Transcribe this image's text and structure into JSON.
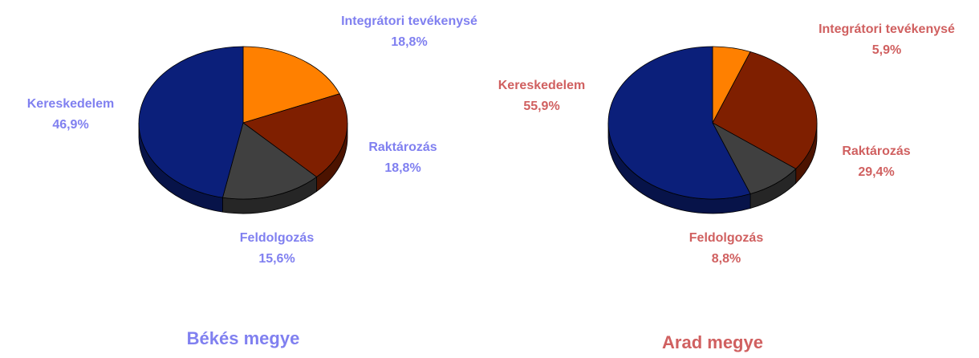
{
  "chart_data": [
    {
      "type": "pie",
      "title": "Békés megye",
      "categories": [
        "Integrátori tevékenysé",
        "Raktározás",
        "Feldolgozás",
        "Kereskedelem"
      ],
      "values": [
        18.8,
        18.8,
        15.6,
        46.9
      ],
      "value_labels": [
        "18,8%",
        "18,8%",
        "15,6%",
        "46,9%"
      ],
      "colors": [
        "#ff8000",
        "#7f1f00",
        "#404040",
        "#0b1f7a"
      ],
      "label_color": "#8080f0"
    },
    {
      "type": "pie",
      "title": "Arad megye",
      "categories": [
        "Integrátori tevékenysé",
        "Raktározás",
        "Feldolgozás",
        "Kereskedelem"
      ],
      "values": [
        5.9,
        29.4,
        8.8,
        55.9
      ],
      "value_labels": [
        "5,9%",
        "29,4%",
        "8,8%",
        "55,9%"
      ],
      "colors": [
        "#ff8000",
        "#7f1f00",
        "#404040",
        "#0b1f7a"
      ],
      "label_color": "#d06060"
    }
  ]
}
